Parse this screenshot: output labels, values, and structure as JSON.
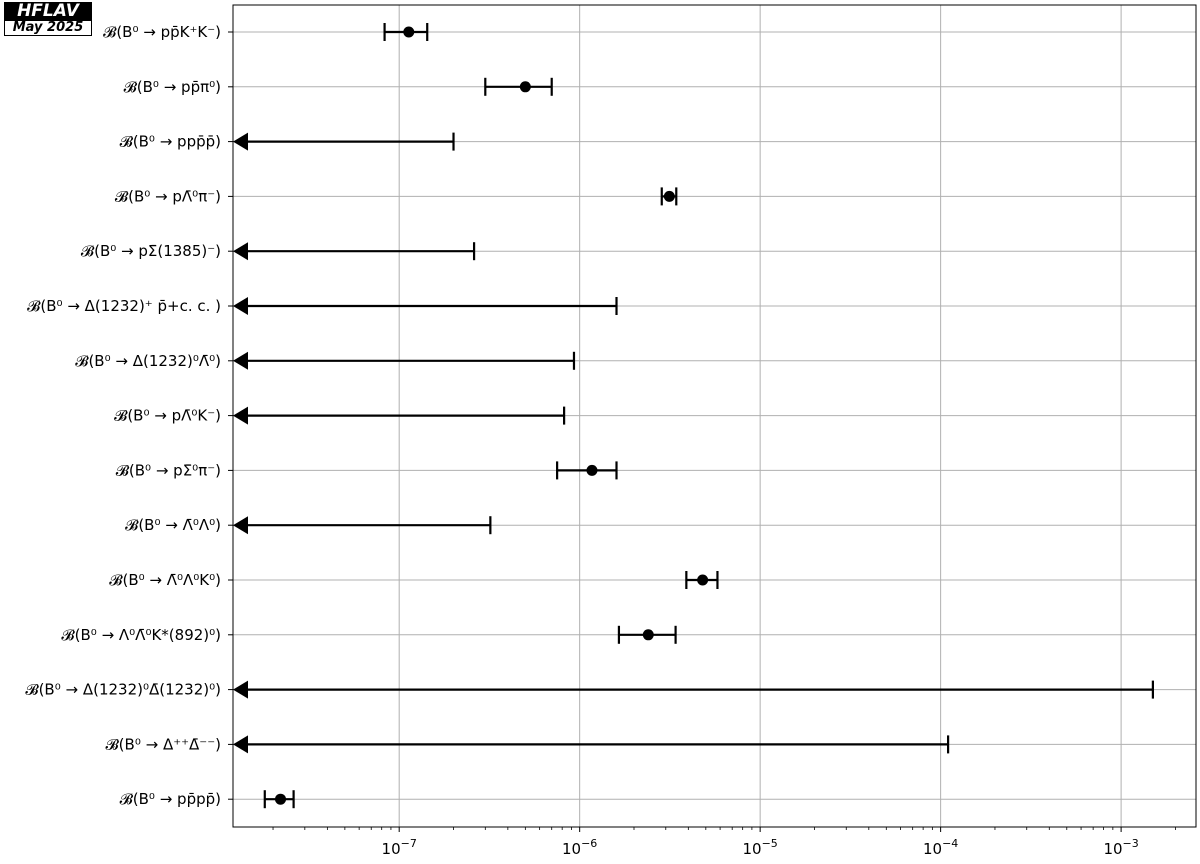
{
  "logo": {
    "name": "HFLAV",
    "date": "May 2025"
  },
  "chart_data": {
    "type": "scatter",
    "x_scale": "log",
    "xlim": [
      1.2e-08,
      0.0026
    ],
    "grid": true,
    "x_ticks": [
      {
        "value": 1e-07,
        "base": "10",
        "exp": "−7"
      },
      {
        "value": 1e-06,
        "base": "10",
        "exp": "−6"
      },
      {
        "value": 1e-05,
        "base": "10",
        "exp": "−5"
      },
      {
        "value": 0.0001,
        "base": "10",
        "exp": "−4"
      },
      {
        "value": 0.001,
        "base": "10",
        "exp": "−3"
      }
    ],
    "rows": [
      {
        "label": "𝓑(B⁰ → pp̄K⁺K⁻)",
        "kind": "measurement",
        "value": 1.13e-07,
        "low": 8.3e-08,
        "high": 1.43e-07
      },
      {
        "label": "𝓑(B⁰ → pp̄π⁰)",
        "kind": "measurement",
        "value": 5e-07,
        "low": 3e-07,
        "high": 7e-07
      },
      {
        "label": "𝓑(B⁰ → ppp̄p̄)",
        "kind": "limit",
        "upper": 2e-07
      },
      {
        "label": "𝓑(B⁰ → pΛ̄⁰π⁻)",
        "kind": "measurement",
        "value": 3.14e-06,
        "low": 2.85e-06,
        "high": 3.43e-06
      },
      {
        "label": "𝓑(B⁰ → pΣ̄(1385)⁻)",
        "kind": "limit",
        "upper": 2.6e-07
      },
      {
        "label": "𝓑(B⁰ → Δ(1232)⁺ p̄+c. c. )",
        "kind": "limit",
        "upper": 1.6e-06
      },
      {
        "label": "𝓑(B⁰ → Δ(1232)⁰Λ̄⁰)",
        "kind": "limit",
        "upper": 9.3e-07
      },
      {
        "label": "𝓑(B⁰ → pΛ̄⁰K⁻)",
        "kind": "limit",
        "upper": 8.2e-07
      },
      {
        "label": "𝓑(B⁰ → pΣ̄⁰π⁻)",
        "kind": "measurement",
        "value": 1.17e-06,
        "low": 7.5e-07,
        "high": 1.6e-06
      },
      {
        "label": "𝓑(B⁰ → Λ̄⁰Λ⁰)",
        "kind": "limit",
        "upper": 3.2e-07
      },
      {
        "label": "𝓑(B⁰ → Λ̄⁰Λ⁰K⁰)",
        "kind": "measurement",
        "value": 4.8e-06,
        "low": 3.9e-06,
        "high": 5.8e-06
      },
      {
        "label": "𝓑(B⁰ → Λ⁰Λ̄⁰K*(892)⁰)",
        "kind": "measurement",
        "value": 2.4e-06,
        "low": 1.65e-06,
        "high": 3.4e-06
      },
      {
        "label": "𝓑(B⁰ → Δ(1232)⁰Δ̄(1232)⁰)",
        "kind": "limit",
        "upper": 0.0015
      },
      {
        "label": "𝓑(B⁰ → Δ⁺⁺Δ̄⁻⁻)",
        "kind": "limit",
        "upper": 0.00011
      },
      {
        "label": "𝓑(B⁰ → pp̄pp̄)",
        "kind": "measurement",
        "value": 2.2e-08,
        "low": 1.8e-08,
        "high": 2.6e-08
      }
    ]
  }
}
